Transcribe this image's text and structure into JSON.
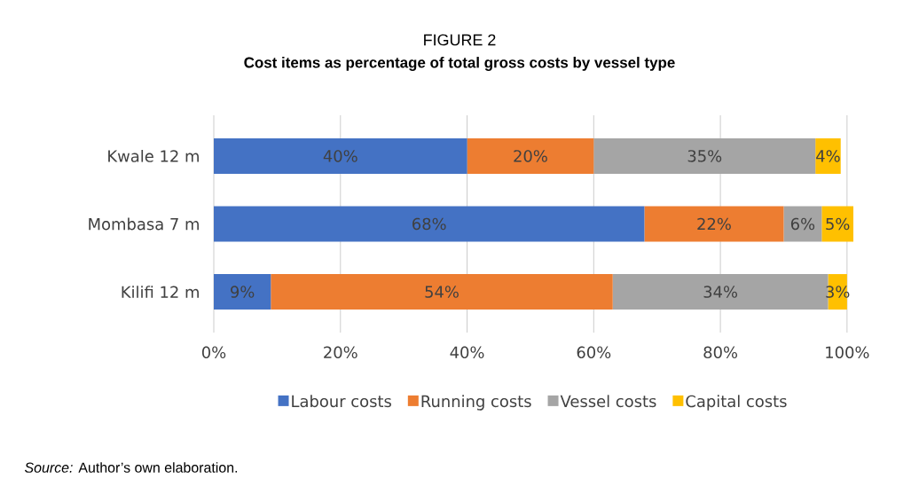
{
  "chart_data": {
    "type": "bar",
    "orientation": "horizontal",
    "stacked": true,
    "title": "FIGURE 2",
    "subtitle": "Cost items as percentage of total gross costs by vessel type",
    "categories": [
      "Kwale 12 m",
      "Mombasa 7 m",
      "Kilifi 12 m"
    ],
    "series": [
      {
        "name": "Labour costs",
        "color": "#4472c4",
        "values": [
          40,
          68,
          9
        ],
        "value_labels": [
          "40%",
          "68%",
          "9%"
        ]
      },
      {
        "name": "Running costs",
        "color": "#ed7d31",
        "values": [
          20,
          22,
          54
        ],
        "value_labels": [
          "20%",
          "22%",
          "54%"
        ]
      },
      {
        "name": "Vessel costs",
        "color": "#a5a5a5",
        "values": [
          35,
          6,
          34
        ],
        "value_labels": [
          "35%",
          "6%",
          "34%"
        ]
      },
      {
        "name": "Capital costs",
        "color": "#ffc000",
        "values": [
          4,
          5,
          3
        ],
        "value_labels": [
          "4%",
          "5%",
          "3%"
        ]
      }
    ],
    "xlim": [
      0,
      101
    ],
    "xticks": [
      {
        "value": 0,
        "label": "0%"
      },
      {
        "value": 20,
        "label": "20%"
      },
      {
        "value": 40,
        "label": "40%"
      },
      {
        "value": 60,
        "label": "60%"
      },
      {
        "value": 80,
        "label": "80%"
      },
      {
        "value": 100,
        "label": "100%"
      }
    ],
    "grid": "x",
    "legend": "bottom",
    "annotations": [
      "*Source:* Author’s own elaboration."
    ]
  }
}
